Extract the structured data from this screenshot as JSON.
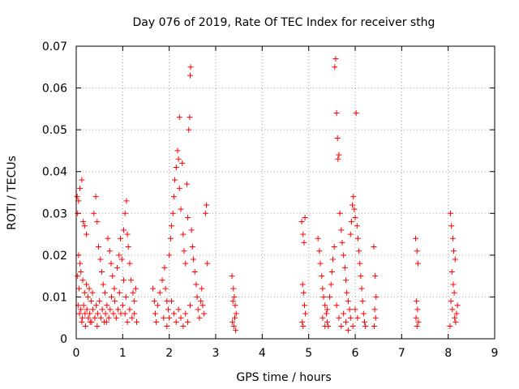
{
  "chart_data": {
    "type": "scatter",
    "title": "Day 076 of 2019, Rate Of TEC Index for receiver sthg",
    "xlabel": "GPS time / hours",
    "ylabel": "ROTI / TECUs",
    "xlim": [
      0,
      9
    ],
    "ylim": [
      0,
      0.07
    ],
    "xticks": [
      0,
      1,
      2,
      3,
      4,
      5,
      6,
      7,
      8,
      9
    ],
    "xtick_labels": [
      "0",
      "1",
      "2",
      "3",
      "4",
      "5",
      "6",
      "7",
      "8",
      "9"
    ],
    "yticks": [
      0,
      0.01,
      0.02,
      0.03,
      0.04,
      0.05,
      0.06,
      0.07
    ],
    "ytick_labels": [
      "0",
      "0.01",
      "0.02",
      "0.03",
      "0.04",
      "0.05",
      "0.06",
      "0.07"
    ],
    "grid": true,
    "marker": "+",
    "color": "#ff0000",
    "series": [
      {
        "name": "ROTI",
        "points": [
          [
            0.02,
            0.034
          ],
          [
            0.03,
            0.03
          ],
          [
            0.05,
            0.033
          ],
          [
            0.08,
            0.036
          ],
          [
            0.12,
            0.038
          ],
          [
            0.15,
            0.028
          ],
          [
            0.18,
            0.027
          ],
          [
            0.22,
            0.025
          ],
          [
            0.05,
            0.02
          ],
          [
            0.08,
            0.018
          ],
          [
            0.03,
            0.015
          ],
          [
            0.06,
            0.012
          ],
          [
            0.1,
            0.016
          ],
          [
            0.14,
            0.014
          ],
          [
            0.18,
            0.011
          ],
          [
            0.22,
            0.013
          ],
          [
            0.25,
            0.01
          ],
          [
            0.28,
            0.012
          ],
          [
            0.32,
            0.009
          ],
          [
            0.35,
            0.011
          ],
          [
            0.04,
            0.008
          ],
          [
            0.07,
            0.006
          ],
          [
            0.1,
            0.007
          ],
          [
            0.13,
            0.005
          ],
          [
            0.16,
            0.008
          ],
          [
            0.19,
            0.006
          ],
          [
            0.23,
            0.007
          ],
          [
            0.26,
            0.005
          ],
          [
            0.29,
            0.006
          ],
          [
            0.33,
            0.004
          ],
          [
            0.36,
            0.007
          ],
          [
            0.4,
            0.005
          ],
          [
            0.43,
            0.008
          ],
          [
            0.46,
            0.006
          ],
          [
            0.5,
            0.009
          ],
          [
            0.53,
            0.005
          ],
          [
            0.56,
            0.007
          ],
          [
            0.6,
            0.004
          ],
          [
            0.63,
            0.006
          ],
          [
            0.66,
            0.008
          ],
          [
            0.7,
            0.005
          ],
          [
            0.73,
            0.007
          ],
          [
            0.76,
            0.01
          ],
          [
            0.8,
            0.006
          ],
          [
            0.83,
            0.009
          ],
          [
            0.86,
            0.005
          ],
          [
            0.9,
            0.007
          ],
          [
            0.93,
            0.011
          ],
          [
            0.96,
            0.006
          ],
          [
            1.0,
            0.008
          ],
          [
            0.38,
            0.03
          ],
          [
            0.42,
            0.034
          ],
          [
            0.45,
            0.028
          ],
          [
            0.48,
            0.022
          ],
          [
            0.52,
            0.019
          ],
          [
            0.55,
            0.016
          ],
          [
            0.58,
            0.013
          ],
          [
            0.62,
            0.011
          ],
          [
            0.68,
            0.024
          ],
          [
            0.72,
            0.021
          ],
          [
            0.75,
            0.018
          ],
          [
            0.78,
            0.015
          ],
          [
            0.82,
            0.012
          ],
          [
            0.88,
            0.017
          ],
          [
            0.92,
            0.02
          ],
          [
            0.95,
            0.024
          ],
          [
            0.98,
            0.019
          ],
          [
            1.02,
            0.026
          ],
          [
            1.05,
            0.03
          ],
          [
            1.08,
            0.033
          ],
          [
            1.1,
            0.025
          ],
          [
            1.12,
            0.022
          ],
          [
            1.15,
            0.018
          ],
          [
            1.18,
            0.014
          ],
          [
            1.22,
            0.011
          ],
          [
            1.25,
            0.009
          ],
          [
            1.28,
            0.012
          ],
          [
            1.05,
            0.006
          ],
          [
            1.1,
            0.004
          ],
          [
            1.15,
            0.007
          ],
          [
            1.2,
            0.005
          ],
          [
            1.25,
            0.006
          ],
          [
            1.3,
            0.004
          ],
          [
            1.02,
            0.014
          ],
          [
            1.07,
            0.01
          ],
          [
            0.12,
            0.004
          ],
          [
            0.2,
            0.003
          ],
          [
            0.3,
            0.004
          ],
          [
            0.45,
            0.003
          ],
          [
            0.65,
            0.004
          ],
          [
            1.65,
            0.012
          ],
          [
            1.68,
            0.009
          ],
          [
            1.7,
            0.006
          ],
          [
            1.72,
            0.004
          ],
          [
            1.75,
            0.008
          ],
          [
            1.8,
            0.011
          ],
          [
            1.85,
            0.014
          ],
          [
            1.9,
            0.017
          ],
          [
            1.92,
            0.012
          ],
          [
            1.95,
            0.009
          ],
          [
            1.98,
            0.007
          ],
          [
            2.0,
            0.02
          ],
          [
            2.03,
            0.024
          ],
          [
            2.05,
            0.027
          ],
          [
            2.08,
            0.03
          ],
          [
            2.1,
            0.034
          ],
          [
            2.12,
            0.038
          ],
          [
            2.15,
            0.041
          ],
          [
            2.18,
            0.045
          ],
          [
            2.2,
            0.043
          ],
          [
            2.22,
            0.036
          ],
          [
            2.25,
            0.031
          ],
          [
            2.28,
            0.042
          ],
          [
            2.3,
            0.025
          ],
          [
            2.32,
            0.021
          ],
          [
            2.35,
            0.018
          ],
          [
            2.38,
            0.037
          ],
          [
            2.4,
            0.029
          ],
          [
            2.42,
            0.05
          ],
          [
            2.44,
            0.053
          ],
          [
            2.45,
            0.063
          ],
          [
            2.46,
            0.065
          ],
          [
            2.48,
            0.026
          ],
          [
            2.5,
            0.022
          ],
          [
            2.52,
            0.019
          ],
          [
            2.55,
            0.016
          ],
          [
            2.58,
            0.013
          ],
          [
            2.6,
            0.01
          ],
          [
            2.62,
            0.007
          ],
          [
            2.65,
            0.005
          ],
          [
            2.68,
            0.009
          ],
          [
            2.7,
            0.012
          ],
          [
            2.72,
            0.008
          ],
          [
            2.75,
            0.006
          ],
          [
            2.78,
            0.03
          ],
          [
            2.8,
            0.032
          ],
          [
            2.82,
            0.018
          ],
          [
            2.22,
            0.053
          ],
          [
            2.05,
            0.009
          ],
          [
            2.1,
            0.006
          ],
          [
            2.15,
            0.004
          ],
          [
            2.2,
            0.007
          ],
          [
            2.25,
            0.005
          ],
          [
            2.3,
            0.003
          ],
          [
            2.35,
            0.006
          ],
          [
            2.4,
            0.004
          ],
          [
            2.45,
            0.008
          ],
          [
            1.88,
            0.005
          ],
          [
            1.95,
            0.003
          ],
          [
            2.0,
            0.005
          ],
          [
            3.35,
            0.015
          ],
          [
            3.38,
            0.012
          ],
          [
            3.4,
            0.01
          ],
          [
            3.42,
            0.008
          ],
          [
            3.44,
            0.006
          ],
          [
            3.36,
            0.004
          ],
          [
            3.39,
            0.003
          ],
          [
            3.41,
            0.005
          ],
          [
            3.43,
            0.002
          ],
          [
            3.37,
            0.009
          ],
          [
            4.85,
            0.028
          ],
          [
            4.88,
            0.025
          ],
          [
            4.9,
            0.023
          ],
          [
            4.92,
            0.029
          ],
          [
            4.87,
            0.013
          ],
          [
            4.89,
            0.011
          ],
          [
            4.91,
            0.008
          ],
          [
            4.93,
            0.006
          ],
          [
            4.86,
            0.004
          ],
          [
            4.88,
            0.003
          ],
          [
            5.2,
            0.024
          ],
          [
            5.23,
            0.021
          ],
          [
            5.25,
            0.018
          ],
          [
            5.28,
            0.015
          ],
          [
            5.3,
            0.012
          ],
          [
            5.32,
            0.01
          ],
          [
            5.35,
            0.008
          ],
          [
            5.38,
            0.006
          ],
          [
            5.4,
            0.004
          ],
          [
            5.42,
            0.003
          ],
          [
            5.45,
            0.01
          ],
          [
            5.48,
            0.013
          ],
          [
            5.5,
            0.016
          ],
          [
            5.52,
            0.019
          ],
          [
            5.55,
            0.022
          ],
          [
            5.56,
            0.065
          ],
          [
            5.58,
            0.067
          ],
          [
            5.6,
            0.054
          ],
          [
            5.62,
            0.048
          ],
          [
            5.63,
            0.043
          ],
          [
            5.65,
            0.044
          ],
          [
            5.67,
            0.03
          ],
          [
            5.7,
            0.026
          ],
          [
            5.72,
            0.023
          ],
          [
            5.75,
            0.02
          ],
          [
            5.78,
            0.017
          ],
          [
            5.8,
            0.014
          ],
          [
            5.82,
            0.011
          ],
          [
            5.85,
            0.009
          ],
          [
            5.88,
            0.007
          ],
          [
            5.9,
            0.025
          ],
          [
            5.92,
            0.028
          ],
          [
            5.94,
            0.032
          ],
          [
            5.96,
            0.034
          ],
          [
            5.98,
            0.031
          ],
          [
            6.0,
            0.029
          ],
          [
            6.02,
            0.054
          ],
          [
            6.04,
            0.027
          ],
          [
            6.06,
            0.024
          ],
          [
            6.08,
            0.021
          ],
          [
            6.1,
            0.018
          ],
          [
            6.12,
            0.015
          ],
          [
            6.14,
            0.012
          ],
          [
            6.16,
            0.009
          ],
          [
            6.18,
            0.006
          ],
          [
            6.2,
            0.004
          ],
          [
            6.22,
            0.003
          ],
          [
            5.6,
            0.008
          ],
          [
            5.65,
            0.005
          ],
          [
            5.7,
            0.003
          ],
          [
            5.75,
            0.006
          ],
          [
            5.8,
            0.004
          ],
          [
            5.85,
            0.002
          ],
          [
            5.9,
            0.005
          ],
          [
            5.95,
            0.003
          ],
          [
            6.0,
            0.007
          ],
          [
            6.05,
            0.005
          ],
          [
            5.3,
            0.005
          ],
          [
            5.35,
            0.003
          ],
          [
            5.4,
            0.007
          ],
          [
            6.4,
            0.022
          ],
          [
            6.43,
            0.015
          ],
          [
            6.45,
            0.01
          ],
          [
            6.42,
            0.007
          ],
          [
            6.44,
            0.005
          ],
          [
            6.41,
            0.003
          ],
          [
            7.3,
            0.024
          ],
          [
            7.33,
            0.021
          ],
          [
            7.35,
            0.018
          ],
          [
            7.32,
            0.009
          ],
          [
            7.34,
            0.007
          ],
          [
            7.31,
            0.005
          ],
          [
            7.36,
            0.004
          ],
          [
            7.33,
            0.003
          ],
          [
            8.05,
            0.03
          ],
          [
            8.07,
            0.027
          ],
          [
            8.1,
            0.024
          ],
          [
            8.12,
            0.021
          ],
          [
            8.15,
            0.019
          ],
          [
            8.08,
            0.016
          ],
          [
            8.11,
            0.013
          ],
          [
            8.13,
            0.011
          ],
          [
            8.06,
            0.009
          ],
          [
            8.09,
            0.007
          ],
          [
            8.14,
            0.005
          ],
          [
            8.16,
            0.004
          ],
          [
            8.04,
            0.003
          ],
          [
            8.18,
            0.006
          ],
          [
            8.2,
            0.008
          ]
        ]
      }
    ]
  }
}
